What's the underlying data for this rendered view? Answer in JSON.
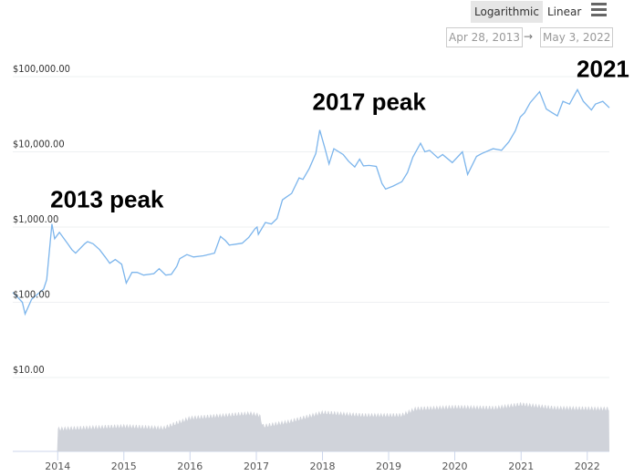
{
  "controls": {
    "logarithmic": "Logarithmic",
    "linear": "Linear",
    "menu_icon": "hamburger-menu-icon",
    "date_from": "Apr 28, 2013",
    "date_to": "May 3, 2022",
    "arrow": "→"
  },
  "chart_data": {
    "type": "line",
    "y_scale": "log",
    "ylim": [
      10,
      100000
    ],
    "y_ticks": [
      {
        "v": 100000,
        "label": "$100,000.00"
      },
      {
        "v": 10000,
        "label": "$10,000.00"
      },
      {
        "v": 1000,
        "label": "$1,000.00"
      },
      {
        "v": 100,
        "label": "$100.00"
      },
      {
        "v": 10,
        "label": "$10.00"
      }
    ],
    "x_range": [
      "2013-04-28",
      "2022-05-03"
    ],
    "x_ticks": [
      "2014",
      "2015",
      "2016",
      "2017",
      "2018",
      "2019",
      "2020",
      "2021",
      "2022"
    ],
    "grid": true,
    "colors": {
      "line": "#7cb5ec",
      "volume": "#d0d3da"
    },
    "annotations": [
      {
        "text": "2013 peak",
        "date": "2013-12-01",
        "price": 1100
      },
      {
        "text": "2017 peak",
        "date": "2017-12-17",
        "price": 19500
      },
      {
        "text": "2021",
        "date": "2021-11-08",
        "price": 67000
      }
    ],
    "series": [
      {
        "x": [
          "2013-04-28",
          "2013-05-20",
          "2013-06-20",
          "2013-07-05",
          "2013-08-10",
          "2013-09-15",
          "2013-10-15",
          "2013-11-01",
          "2013-11-30",
          "2013-12-15",
          "2014-01-10",
          "2014-02-25",
          "2014-03-20",
          "2014-04-10",
          "2014-05-30",
          "2014-06-15",
          "2014-07-15",
          "2014-08-20",
          "2014-09-20",
          "2014-10-15",
          "2014-11-15",
          "2014-12-20",
          "2015-01-14",
          "2015-02-15",
          "2015-03-15",
          "2015-04-20",
          "2015-06-15",
          "2015-07-15",
          "2015-08-20",
          "2015-09-20",
          "2015-10-20",
          "2015-11-05",
          "2015-12-15",
          "2016-01-20",
          "2016-03-15",
          "2016-05-15",
          "2016-06-17",
          "2016-07-15",
          "2016-08-05",
          "2016-10-15",
          "2016-11-20",
          "2016-12-25",
          "2017-01-05",
          "2017-01-12",
          "2017-02-20",
          "2017-03-25",
          "2017-04-25",
          "2017-05-25",
          "2017-06-15",
          "2017-07-15",
          "2017-08-25",
          "2017-09-15",
          "2017-10-20",
          "2017-11-25",
          "2017-12-17",
          "2018-01-15",
          "2018-02-06",
          "2018-03-05",
          "2018-04-25",
          "2018-05-25",
          "2018-06-28",
          "2018-07-25",
          "2018-08-15",
          "2018-09-15",
          "2018-10-25",
          "2018-11-25",
          "2018-12-15",
          "2019-01-25",
          "2019-03-15",
          "2019-04-15",
          "2019-05-15",
          "2019-06-26",
          "2019-07-20",
          "2019-08-15",
          "2019-09-30",
          "2019-10-26",
          "2019-12-18",
          "2020-02-12",
          "2020-03-12",
          "2020-04-30",
          "2020-05-30",
          "2020-07-30",
          "2020-09-15",
          "2020-10-25",
          "2020-11-30",
          "2020-12-27",
          "2021-01-20",
          "2021-02-20",
          "2021-04-13",
          "2021-05-20",
          "2021-06-22",
          "2021-07-20",
          "2021-08-20",
          "2021-09-25",
          "2021-11-08",
          "2021-12-10",
          "2022-01-24",
          "2022-02-15",
          "2022-03-28",
          "2022-05-03"
        ],
        "values": [
          135,
          120,
          100,
          70,
          110,
          130,
          150,
          200,
          1100,
          700,
          850,
          600,
          500,
          450,
          600,
          640,
          600,
          500,
          400,
          330,
          370,
          320,
          180,
          250,
          250,
          230,
          240,
          280,
          230,
          235,
          300,
          380,
          430,
          400,
          415,
          450,
          750,
          660,
          575,
          610,
          730,
          950,
          1000,
          800,
          1150,
          1100,
          1300,
          2300,
          2500,
          2800,
          4500,
          4300,
          6000,
          9500,
          19500,
          11000,
          6900,
          11000,
          9200,
          7500,
          6300,
          8000,
          6500,
          6600,
          6400,
          3800,
          3200,
          3500,
          4000,
          5300,
          8500,
          13000,
          10000,
          10500,
          8300,
          9200,
          7200,
          10000,
          5000,
          8700,
          9500,
          11000,
          10500,
          13500,
          19000,
          29000,
          33000,
          45000,
          63000,
          37000,
          33000,
          30000,
          47000,
          43000,
          67000,
          47000,
          36000,
          43000,
          47000,
          38500
        ]
      }
    ]
  }
}
